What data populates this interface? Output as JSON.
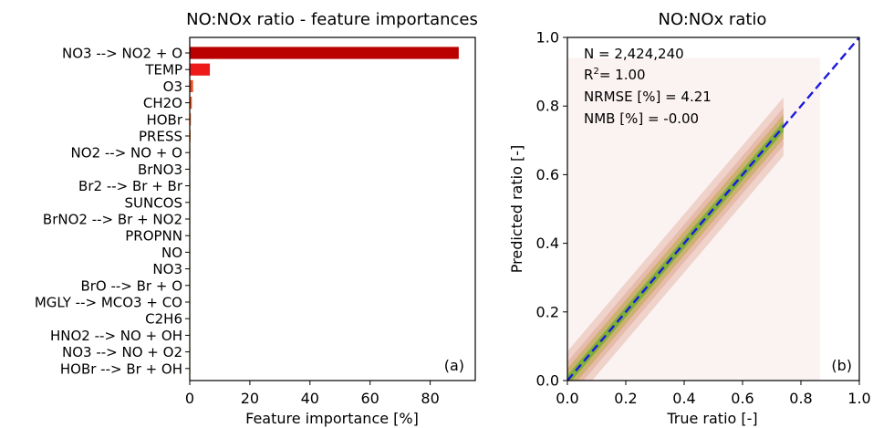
{
  "chart_data": [
    {
      "type": "bar",
      "orientation": "horizontal",
      "title": "NO:NOx ratio - feature importances",
      "xlabel": "Feature importance [%]",
      "ylabel": "",
      "xlim": [
        0,
        95
      ],
      "xticks": [
        "0",
        "20",
        "40",
        "60",
        "80"
      ],
      "panel_label": "(a)",
      "categories": [
        "NO3 --> NO2 + O",
        "TEMP",
        "O3",
        "CH2O",
        "HOBr",
        "PRESS",
        "NO2 --> NO + O",
        "BrNO3",
        "Br2 --> Br + Br",
        "SUNCOS",
        "BrNO2 --> Br + NO2",
        "PROPNN",
        "NO",
        "NO3",
        "BrO --> Br + O",
        "MGLY --> MCO3 + CO",
        "C2H6",
        "HNO2 --> NO + OH",
        "NO3 --> NO + O2",
        "HOBr --> Br + OH"
      ],
      "values": [
        89.5,
        6.7,
        1.1,
        0.7,
        0.4,
        0.3,
        0.2,
        0.15,
        0.12,
        0.1,
        0.08,
        0.07,
        0.06,
        0.05,
        0.04,
        0.03,
        0.03,
        0.02,
        0.02,
        0.02
      ],
      "colors": [
        "#bb0000",
        "#ee1a1a",
        "#f24a1e",
        "#f05a1e",
        "#f06a20",
        "#f07a22",
        "#f08a24",
        "#f09a26",
        "#f0a028",
        "#f0a82a",
        "#f0b02c",
        "#f0b82e",
        "#f0c030",
        "#f0c832",
        "#f0d034",
        "#f0d836",
        "#f0dc38",
        "#f0e03a",
        "#f0e43c",
        "#f0e83e"
      ]
    },
    {
      "type": "scatter",
      "subtype": "2d-density",
      "title": "NO:NOx ratio",
      "xlabel": "True ratio [-]",
      "ylabel": "Predicted ratio [-]",
      "xlim": [
        0,
        1
      ],
      "ylim": [
        0,
        1
      ],
      "xticks": [
        "0.0",
        "0.2",
        "0.4",
        "0.6",
        "0.8",
        "1.0"
      ],
      "yticks": [
        "0.0",
        "0.2",
        "0.4",
        "0.6",
        "0.8",
        "1.0"
      ],
      "panel_label": "(b)",
      "stats": {
        "n": "N = 2,424,240",
        "r2_prefix": "R",
        "r2_sup": "2",
        "r2_value": "= 1.00",
        "nrmse": "NRMSE [%] = 4.21",
        "nmb": "NMB [%] = -0.00"
      },
      "reference_line": {
        "x": [
          0,
          1
        ],
        "y": [
          0,
          1
        ],
        "color": "#1a1adc",
        "style": "dashed"
      },
      "density_band": {
        "x_range": [
          0,
          0.74
        ],
        "core_color": "#7fae3a",
        "mid_color": "#c9b06a",
        "edge_color": "#e6b8a8",
        "background": "#fbf2f2"
      }
    }
  ]
}
